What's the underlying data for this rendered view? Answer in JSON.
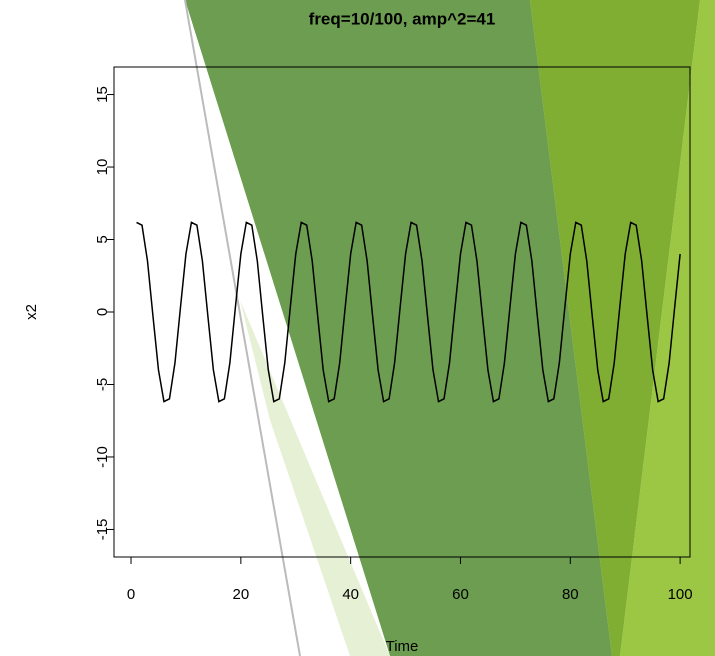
{
  "chart_data": {
    "type": "line",
    "title": "freq=10/100, amp^2=41",
    "x_label": "Time",
    "y_label": "x2",
    "x": [
      1,
      2,
      3,
      4,
      5,
      6,
      7,
      8,
      9,
      10,
      11,
      12,
      13,
      14,
      15,
      16,
      17,
      18,
      19,
      20,
      21,
      22,
      23,
      24,
      25,
      26,
      27,
      28,
      29,
      30,
      31,
      32,
      33,
      34,
      35,
      36,
      37,
      38,
      39,
      40,
      41,
      42,
      43,
      44,
      45,
      46,
      47,
      48,
      49,
      50,
      51,
      52,
      53,
      54,
      55,
      56,
      57,
      58,
      59,
      60,
      61,
      62,
      63,
      64,
      65,
      66,
      67,
      68,
      69,
      70,
      71,
      72,
      73,
      74,
      75,
      76,
      77,
      78,
      79,
      80,
      81,
      82,
      83,
      84,
      85,
      86,
      87,
      88,
      89,
      90,
      91,
      92,
      93,
      94,
      95,
      96,
      97,
      98,
      99,
      100
    ],
    "y": [
      6.18,
      5.99,
      3.52,
      -0.3,
      -4,
      -6.18,
      -5.99,
      -3.52,
      0.3,
      4,
      6.18,
      5.99,
      3.52,
      -0.3,
      -4,
      -6.18,
      -5.99,
      -3.52,
      0.3,
      4,
      6.18,
      5.99,
      3.52,
      -0.3,
      -4,
      -6.18,
      -5.99,
      -3.52,
      0.3,
      4,
      6.18,
      5.99,
      3.52,
      -0.3,
      -4,
      -6.18,
      -5.99,
      -3.52,
      0.3,
      4,
      6.18,
      5.99,
      3.52,
      -0.3,
      -4,
      -6.18,
      -5.99,
      -3.52,
      0.3,
      4,
      6.18,
      5.99,
      3.52,
      -0.3,
      -4,
      -6.18,
      -5.99,
      -3.52,
      0.3,
      4,
      6.18,
      5.99,
      3.52,
      -0.3,
      -4,
      -6.18,
      -5.99,
      -3.52,
      0.3,
      4,
      6.18,
      5.99,
      3.52,
      -0.3,
      -4,
      -6.18,
      -5.99,
      -3.52,
      0.3,
      4,
      6.18,
      5.99,
      3.52,
      -0.3,
      -4,
      -6.18,
      -5.99,
      -3.52,
      0.3,
      4,
      6.18,
      5.99,
      3.52,
      -0.3,
      -4,
      -6.18,
      -5.99,
      -3.52,
      0.3,
      4
    ],
    "color": "#000000",
    "xlim": [
      -3.1,
      101.8
    ],
    "ylim": [
      -16.9,
      16.9
    ],
    "xticks": [
      0,
      20,
      40,
      60,
      80,
      100
    ],
    "yticks": [
      -15,
      -10,
      -5,
      0,
      5,
      10,
      15
    ]
  }
}
